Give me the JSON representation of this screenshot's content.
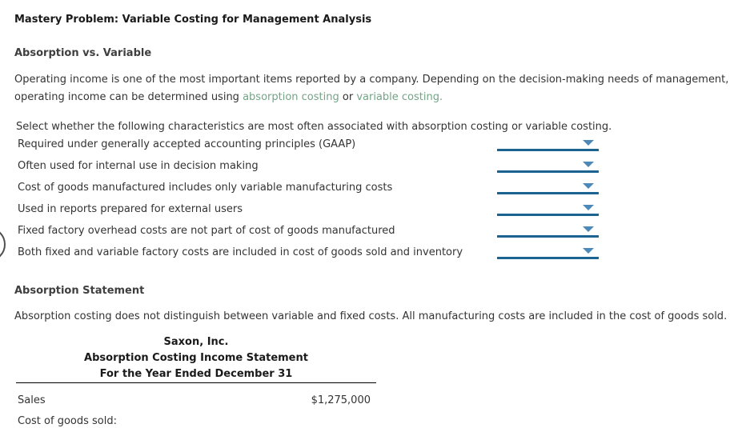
{
  "page_title": "Mastery Problem: Variable Costing for Management Analysis",
  "absorption_vs_variable": {
    "heading": "Absorption vs. Variable",
    "intro": {
      "text_before": "Operating income is one of the most important items reported by a company. Depending on the decision-making needs of management, operating income can be determined using ",
      "link_absorption": "absorption costing",
      "text_between": " or ",
      "link_variable": "variable costing",
      "text_after": "."
    },
    "instruction": "Select whether the following characteristics are most often associated with absorption costing or variable costing.",
    "characteristics": [
      {
        "label": "Required under generally accepted accounting principles (GAAP)",
        "selected_value": ""
      },
      {
        "label": "Often used for internal use in decision making",
        "selected_value": ""
      },
      {
        "label": "Cost of goods manufactured includes only variable manufacturing costs",
        "selected_value": ""
      },
      {
        "label": "Used in reports prepared for external users",
        "selected_value": ""
      },
      {
        "label": "Fixed factory overhead costs are not part of cost of goods manufactured",
        "selected_value": ""
      },
      {
        "label": "Both fixed and variable factory costs are included in cost of goods sold and inventory",
        "selected_value": ""
      }
    ]
  },
  "absorption_statement": {
    "heading": "Absorption Statement",
    "description": "Absorption costing does not distinguish between variable and fixed costs. All manufacturing costs are included in the cost of goods sold.",
    "income_statement": {
      "company": "Saxon, Inc.",
      "title": "Absorption Costing Income Statement",
      "period": "For the Year Ended December 31",
      "rows": [
        {
          "label": "Sales",
          "amount": "$1,275,000"
        },
        {
          "label": "Cost of goods sold:",
          "amount": ""
        }
      ]
    }
  },
  "colors": {
    "link_green": "#74a486",
    "dropdown_line_blue": "#1b6390",
    "dropdown_arrow_blue": "#4c88b8",
    "heading_gray": "#3f3f3f",
    "body_text": "#333333"
  }
}
